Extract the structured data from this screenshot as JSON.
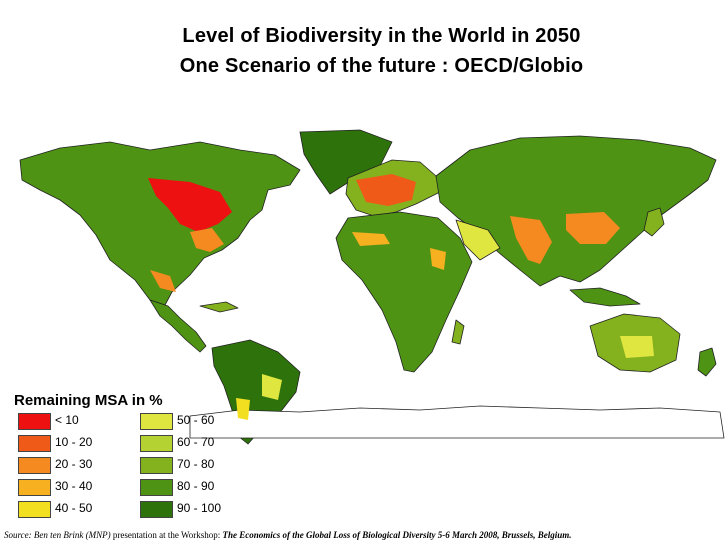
{
  "title": {
    "line1": "Level of Biodiversity in the World in 2050",
    "line2": "One Scenario of the future : OECD/Globio"
  },
  "legend": {
    "title": "Remaining MSA in %",
    "items": [
      {
        "label": "< 10",
        "color": "#ee1111"
      },
      {
        "label": "10 - 20",
        "color": "#f05a18"
      },
      {
        "label": "20 - 30",
        "color": "#f58a20"
      },
      {
        "label": "30 - 40",
        "color": "#f7b020"
      },
      {
        "label": "40 - 50",
        "color": "#f2e020"
      },
      {
        "label": "50 - 60",
        "color": "#dfe640"
      },
      {
        "label": "60 - 70",
        "color": "#b4d232"
      },
      {
        "label": "70 - 80",
        "color": "#84b21e"
      },
      {
        "label": "80 - 90",
        "color": "#4e9314"
      },
      {
        "label": "90 - 100",
        "color": "#2e720c"
      }
    ]
  },
  "source": {
    "prefix": "Source:  Ben ten Brink (MNP)",
    "middle": "  presentation at the Workshop: ",
    "event": "The Economics of the Global Loss of Biological Diversity 5-6 March 2008, Brussels, Belgium."
  },
  "colors": {
    "land_base": "#4e9314",
    "land_dark": "#2e720c",
    "land_light": "#84b21e",
    "hot": "#ee1111",
    "warm": "#f58a20",
    "yellow": "#dfe640",
    "border": "#222222"
  }
}
